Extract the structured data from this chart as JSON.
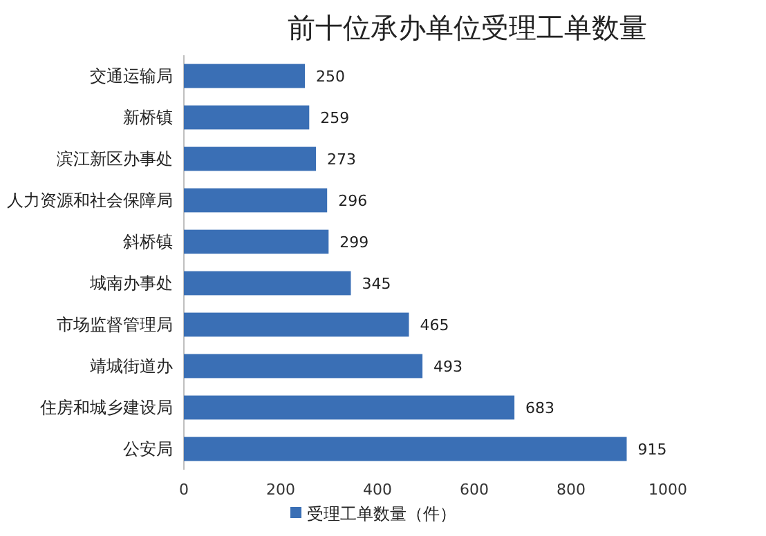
{
  "chart_data": {
    "type": "bar",
    "orientation": "horizontal",
    "title": "前十位承办单位受理工单数量",
    "categories": [
      "交通运输局",
      "新桥镇",
      "滨江新区办事处",
      "人力资源和社会保障局",
      "斜桥镇",
      "城南办事处",
      "市场监督管理局",
      "靖城街道办",
      "住房和城乡建设局",
      "公安局"
    ],
    "series": [
      {
        "name": "受理工单数量（件）",
        "color": "#3a6fb5",
        "values": [
          250,
          259,
          273,
          296,
          299,
          345,
          465,
          493,
          683,
          915
        ]
      }
    ],
    "xlim": [
      0,
      1000
    ],
    "xticks": [
      0,
      200,
      400,
      600,
      800,
      1000
    ],
    "grid": false,
    "legend": "bottom",
    "data_labels": true
  }
}
